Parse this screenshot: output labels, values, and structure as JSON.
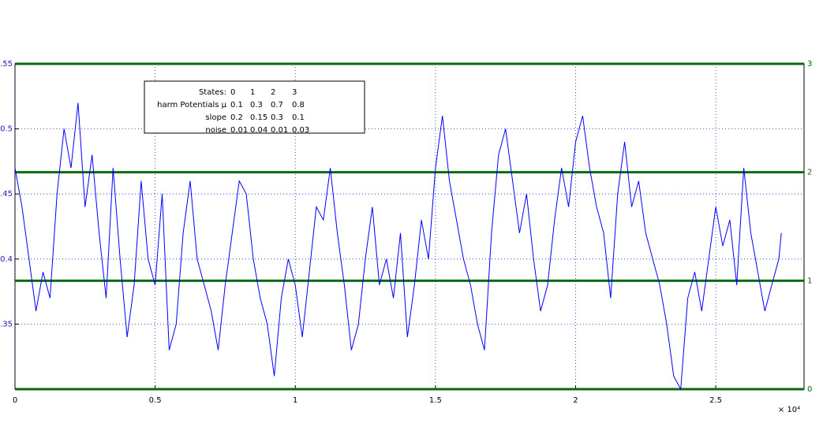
{
  "chart_data": {
    "type": "line",
    "x": [
      0,
      250,
      500,
      750,
      1000,
      1250,
      1500,
      1750,
      2000,
      2250,
      2500,
      2750,
      3000,
      3250,
      3500,
      3750,
      4000,
      4250,
      4500,
      4750,
      5000,
      5250,
      5500,
      5750,
      6000,
      6250,
      6500,
      6750,
      7000,
      7250,
      7500,
      7750,
      8000,
      8250,
      8500,
      8750,
      9000,
      9250,
      9500,
      9750,
      10000,
      10250,
      10500,
      10750,
      11000,
      11250,
      11500,
      11750,
      12000,
      12250,
      12500,
      12750,
      13000,
      13250,
      13500,
      13750,
      14000,
      14250,
      14500,
      14750,
      15000,
      15250,
      15500,
      15750,
      16000,
      16250,
      16500,
      16750,
      17000,
      17250,
      17500,
      17750,
      18000,
      18250,
      18500,
      18750,
      19000,
      19250,
      19500,
      19750,
      20000,
      20250,
      20500,
      20750,
      21000,
      21250,
      21500,
      21750,
      22000,
      22250,
      22500,
      22750,
      23000,
      23250,
      23500,
      23750,
      24000,
      24250,
      24500,
      24750,
      25000,
      25250,
      25500,
      25750,
      26000,
      26250,
      26500,
      26750,
      27000,
      27250,
      27340
    ],
    "values": [
      0.47,
      0.44,
      0.4,
      0.36,
      0.39,
      0.37,
      0.45,
      0.5,
      0.47,
      0.52,
      0.44,
      0.48,
      0.42,
      0.37,
      0.47,
      0.4,
      0.34,
      0.38,
      0.46,
      0.4,
      0.38,
      0.45,
      0.33,
      0.35,
      0.42,
      0.46,
      0.4,
      0.38,
      0.36,
      0.33,
      0.38,
      0.42,
      0.46,
      0.45,
      0.4,
      0.37,
      0.35,
      0.31,
      0.37,
      0.4,
      0.38,
      0.34,
      0.39,
      0.44,
      0.43,
      0.47,
      0.42,
      0.38,
      0.33,
      0.35,
      0.4,
      0.44,
      0.38,
      0.4,
      0.37,
      0.42,
      0.34,
      0.38,
      0.43,
      0.4,
      0.47,
      0.51,
      0.46,
      0.43,
      0.4,
      0.38,
      0.35,
      0.33,
      0.42,
      0.48,
      0.5,
      0.46,
      0.42,
      0.45,
      0.4,
      0.36,
      0.38,
      0.43,
      0.47,
      0.44,
      0.49,
      0.51,
      0.47,
      0.44,
      0.42,
      0.37,
      0.45,
      0.49,
      0.44,
      0.46,
      0.42,
      0.4,
      0.38,
      0.35,
      0.31,
      0.3,
      0.37,
      0.39,
      0.36,
      0.4,
      0.44,
      0.41,
      0.43,
      0.38,
      0.47,
      0.42,
      0.39,
      0.36,
      0.38,
      0.4,
      0.42
    ],
    "color": "#0000ff",
    "state_levels": {
      "axis": "y2",
      "color": "#0b6b0b",
      "values": [
        0,
        1,
        2,
        3
      ]
    },
    "xlim": [
      0,
      28150
    ],
    "xticks": [
      {
        "value": 0,
        "label": "0"
      },
      {
        "value": 5000,
        "label": "0.5"
      },
      {
        "value": 10000,
        "label": "1"
      },
      {
        "value": 15000,
        "label": "1.5"
      },
      {
        "value": 20000,
        "label": "2"
      },
      {
        "value": 25000,
        "label": "2.5"
      }
    ],
    "x_exponent_label": "× 10⁴",
    "ylim": [
      0.3,
      0.55
    ],
    "yticks": [
      {
        "value": 0.35,
        "label": ".35"
      },
      0.4,
      {
        "value": 0.45,
        "label": ".45"
      },
      0.5,
      {
        "value": 0.55,
        "label": ".55"
      }
    ],
    "y2lim": [
      0,
      3
    ],
    "y2ticks": [
      0,
      1,
      2,
      3
    ],
    "grid": true,
    "annotation": {
      "rows": [
        [
          "States:",
          "0",
          "1",
          "2",
          "3"
        ],
        [
          "harm Potentials μ",
          "0.1",
          "0.3",
          "0.7",
          "0.8"
        ],
        [
          "slope",
          "0.2",
          "0.15",
          "0.3",
          "0.1"
        ],
        [
          "noise",
          "0.01",
          "0.04",
          "0.01",
          "0.03"
        ]
      ]
    }
  }
}
